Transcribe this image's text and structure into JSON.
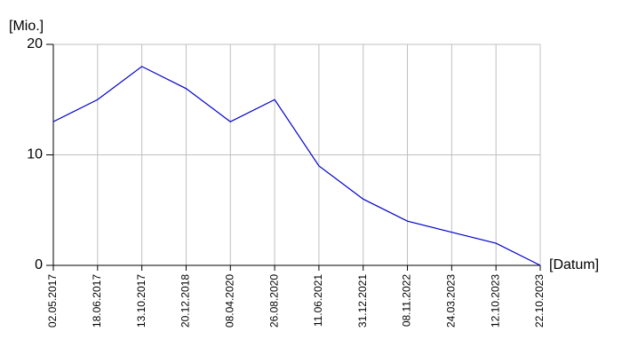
{
  "chart_data": {
    "type": "line",
    "y_label": "[Mio.]",
    "x_label": "[Datum]",
    "categories": [
      "02.05.2017",
      "18.06.2017",
      "13.10.2017",
      "20.12.2018",
      "08.04.2020",
      "26.08.2020",
      "11.06.2021",
      "31.12.2021",
      "08.11.2022",
      "24.03.2023",
      "12.10.2023",
      "22.10.2023"
    ],
    "values": [
      13,
      15,
      18,
      16,
      13,
      15,
      9,
      6,
      4,
      3,
      2,
      0
    ],
    "color": "#0000cc",
    "ylim": [
      0,
      20
    ],
    "yticks": [
      0,
      10,
      20
    ],
    "grid": true
  }
}
